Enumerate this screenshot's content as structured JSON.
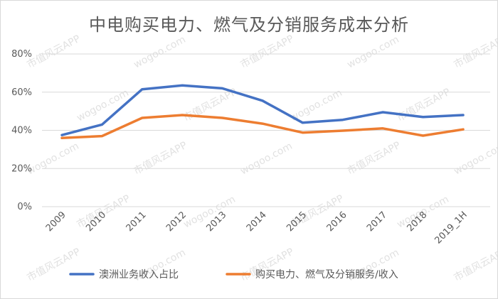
{
  "chart_data": {
    "type": "line",
    "title": "中电购买电力、燃气及分销服务成本分析",
    "categories": [
      "2009",
      "2010",
      "2011",
      "2012",
      "2013",
      "2014",
      "2015",
      "2016",
      "2017",
      "2018",
      "2019_1H"
    ],
    "series": [
      {
        "name": "澳洲业务收入占比",
        "color": "#4472c4",
        "values": [
          37.5,
          43,
          61.5,
          63.5,
          62,
          55.5,
          44,
          45.5,
          49.5,
          47,
          48
        ]
      },
      {
        "name": "购买电力、燃气及分销服务/收入",
        "color": "#ed7d31",
        "values": [
          36,
          37,
          46.5,
          48,
          46.5,
          43.5,
          38.8,
          39.8,
          41,
          37.2,
          40.5
        ]
      }
    ],
    "y_ticks": [
      "0%",
      "20%",
      "40%",
      "60%",
      "80%"
    ],
    "ylim": [
      0,
      80
    ],
    "grid": true,
    "legend_position": "bottom",
    "watermark": [
      "市值风云APP",
      "wogoo.com"
    ]
  }
}
